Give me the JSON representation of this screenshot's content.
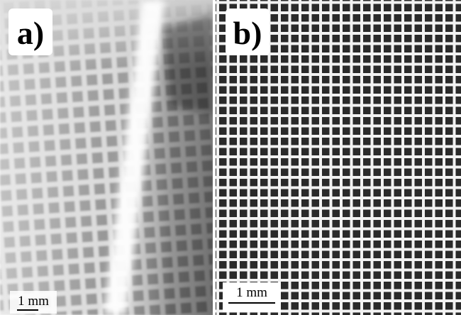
{
  "panels": [
    {
      "label": "a)",
      "scale": "1 mm"
    },
    {
      "label": "b)",
      "scale": "1 mm"
    }
  ]
}
